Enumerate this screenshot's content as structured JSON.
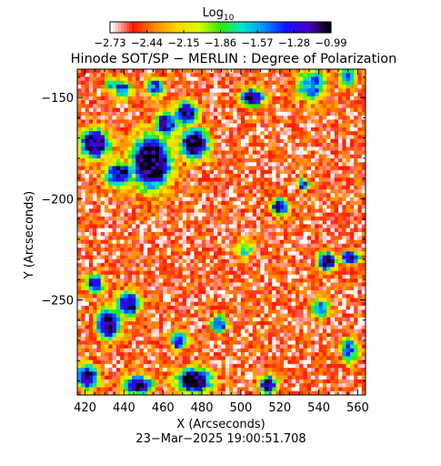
{
  "chart_data": {
    "type": "heatmap",
    "title": "Hinode SOT/SP − MERLIN : Degree of Polarization",
    "xlabel": "X (Arcseconds)",
    "ylabel": "Y (Arcseconds)",
    "timestamp": "23−Mar−2025 19:00:51.708",
    "xlim": [
      416,
      564
    ],
    "ylim": [
      -297,
      -136
    ],
    "x_ticks": [
      420,
      440,
      460,
      480,
      500,
      520,
      540,
      560
    ],
    "x_tick_labels": [
      "420",
      "440",
      "460",
      "480",
      "500",
      "520",
      "540",
      "560"
    ],
    "y_ticks": [
      -150,
      -200,
      -250
    ],
    "y_tick_labels": [
      "−150",
      "−200",
      "−250"
    ],
    "colorbar": {
      "label": "Log",
      "label_subscript": "10",
      "range": [
        -2.73,
        -0.99
      ],
      "ticks": [
        -2.73,
        -2.44,
        -2.15,
        -1.86,
        -1.57,
        -1.28,
        -0.99
      ],
      "tick_labels": [
        "−2.73",
        "−2.44",
        "−2.15",
        "−1.86",
        "−1.57",
        "−1.28",
        "−0.99"
      ],
      "colormap": [
        "#ffffff",
        "#ff1500",
        "#ff8a00",
        "#ffd400",
        "#d8ff00",
        "#2fe800",
        "#00e8d0",
        "#008fff",
        "#1010ff",
        "#4a00cc",
        "#000000"
      ]
    },
    "high_polarization_regions": [
      {
        "x": 425,
        "y": -173,
        "sx": 5,
        "sy": 5,
        "v": -1.1
      },
      {
        "x": 454,
        "y": -182,
        "sx": 7,
        "sy": 9,
        "v": -1.0
      },
      {
        "x": 476,
        "y": -173,
        "sx": 5,
        "sy": 5,
        "v": -1.05
      },
      {
        "x": 472,
        "y": -158,
        "sx": 4,
        "sy": 4,
        "v": -1.2
      },
      {
        "x": 462,
        "y": -163,
        "sx": 4,
        "sy": 4,
        "v": -1.3
      },
      {
        "x": 438,
        "y": -188,
        "sx": 5,
        "sy": 4,
        "v": -1.2
      },
      {
        "x": 456,
        "y": -145,
        "sx": 3,
        "sy": 3,
        "v": -1.4
      },
      {
        "x": 439,
        "y": -146,
        "sx": 3,
        "sy": 3,
        "v": -1.4
      },
      {
        "x": 433,
        "y": -144,
        "sx": 2,
        "sy": 2,
        "v": -1.5
      },
      {
        "x": 506,
        "y": -150,
        "sx": 4,
        "sy": 3,
        "v": -1.2
      },
      {
        "x": 536,
        "y": -144,
        "sx": 5,
        "sy": 5,
        "v": -1.5
      },
      {
        "x": 555,
        "y": -140,
        "sx": 3,
        "sy": 3,
        "v": -1.5
      },
      {
        "x": 432,
        "y": -262,
        "sx": 4,
        "sy": 5,
        "v": -1.1
      },
      {
        "x": 442,
        "y": -252,
        "sx": 4,
        "sy": 4,
        "v": -1.15
      },
      {
        "x": 425,
        "y": -242,
        "sx": 3,
        "sy": 3,
        "v": -1.3
      },
      {
        "x": 421,
        "y": -288,
        "sx": 4,
        "sy": 4,
        "v": -1.2
      },
      {
        "x": 447,
        "y": -292,
        "sx": 5,
        "sy": 3,
        "v": -1.1
      },
      {
        "x": 476,
        "y": -290,
        "sx": 6,
        "sy": 4,
        "v": -1.0
      },
      {
        "x": 468,
        "y": -270,
        "sx": 3,
        "sy": 3,
        "v": -1.3
      },
      {
        "x": 514,
        "y": -292,
        "sx": 3,
        "sy": 3,
        "v": -1.15
      },
      {
        "x": 544,
        "y": -231,
        "sx": 3,
        "sy": 3,
        "v": -1.05
      },
      {
        "x": 556,
        "y": -229,
        "sx": 3,
        "sy": 2,
        "v": -1.05
      },
      {
        "x": 520,
        "y": -204,
        "sx": 3,
        "sy": 3,
        "v": -1.3
      },
      {
        "x": 532,
        "y": -193,
        "sx": 2,
        "sy": 2,
        "v": -1.4
      },
      {
        "x": 502,
        "y": -225,
        "sx": 3,
        "sy": 3,
        "v": -1.8
      },
      {
        "x": 489,
        "y": -262,
        "sx": 3,
        "sy": 3,
        "v": -1.5
      },
      {
        "x": 556,
        "y": -275,
        "sx": 3,
        "sy": 4,
        "v": -1.5
      },
      {
        "x": 541,
        "y": -254,
        "sx": 3,
        "sy": 3,
        "v": -1.6
      }
    ],
    "background_level": -2.55
  }
}
